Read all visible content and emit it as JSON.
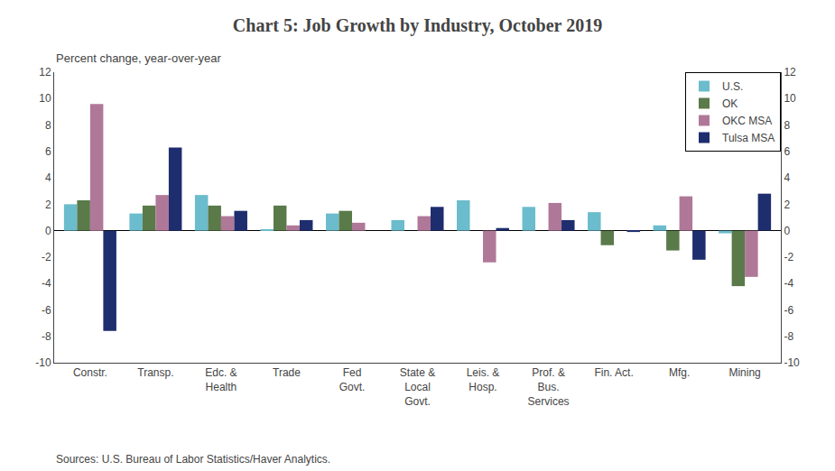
{
  "chart_data": {
    "type": "bar",
    "title": "Chart 5: Job Growth by Industry, October 2019",
    "ylabel": "Percent change, year-over-year",
    "annotations": [
      "Sources: U.S. Bureau of Labor Statistics/Haver Analytics."
    ],
    "categories": [
      "Constr.",
      "Transp.",
      "Edc. &\nHealth",
      "Trade",
      "Fed\nGovt.",
      "State &\nLocal\nGovt.",
      "Leis. &\nHosp.",
      "Prof. &\nBus.\nServices",
      "Fin. Act.",
      "Mfg.",
      "Mining"
    ],
    "series": [
      {
        "name": "U.S.",
        "color": "#6bbccc",
        "values": [
          2.0,
          1.3,
          2.7,
          0.1,
          1.3,
          0.8,
          2.3,
          1.8,
          1.4,
          0.4,
          -0.2
        ]
      },
      {
        "name": "OK",
        "color": "#5a7a4a",
        "values": [
          2.3,
          1.9,
          1.9,
          1.9,
          1.5,
          0.0,
          0.0,
          0.0,
          -1.1,
          -1.5,
          -4.2
        ]
      },
      {
        "name": "OKC MSA",
        "color": "#b07898",
        "values": [
          9.6,
          2.7,
          1.1,
          0.4,
          0.6,
          1.1,
          -2.4,
          2.1,
          0.0,
          2.6,
          -3.5
        ]
      },
      {
        "name": "Tulsa MSA",
        "color": "#1e2d6e",
        "values": [
          -7.6,
          6.3,
          1.5,
          0.8,
          0.0,
          1.8,
          0.2,
          0.8,
          -0.1,
          -2.2,
          2.8
        ]
      }
    ],
    "ylim": [
      -10,
      12
    ],
    "yticks": [
      -10,
      -8,
      -6,
      -4,
      -2,
      0,
      2,
      4,
      6,
      8,
      10,
      12
    ],
    "y2lim": [
      -10,
      12
    ],
    "y2ticks": [
      -10,
      -8,
      -6,
      -4,
      -2,
      0,
      2,
      4,
      6,
      8,
      10,
      12
    ],
    "grid": false,
    "legend": "upper right"
  }
}
